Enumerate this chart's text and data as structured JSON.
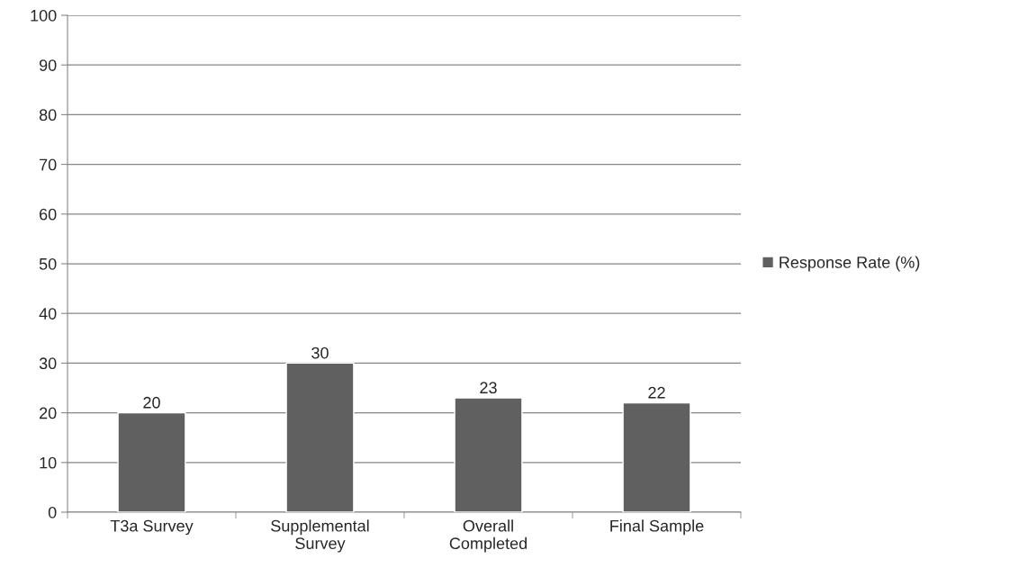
{
  "chart_data": {
    "type": "bar",
    "categories": [
      "T3a Survey",
      "Supplemental Survey",
      "Overall Completed",
      "Final Sample"
    ],
    "series": [
      {
        "name": "Response Rate (%)",
        "color": "#606060",
        "values": [
          20,
          30,
          23,
          22
        ]
      }
    ],
    "ylim": [
      0,
      100
    ],
    "yticks": [
      0,
      10,
      20,
      30,
      40,
      50,
      60,
      70,
      80,
      90,
      100
    ],
    "grid": "y",
    "legend": "right",
    "data_labels": true
  }
}
